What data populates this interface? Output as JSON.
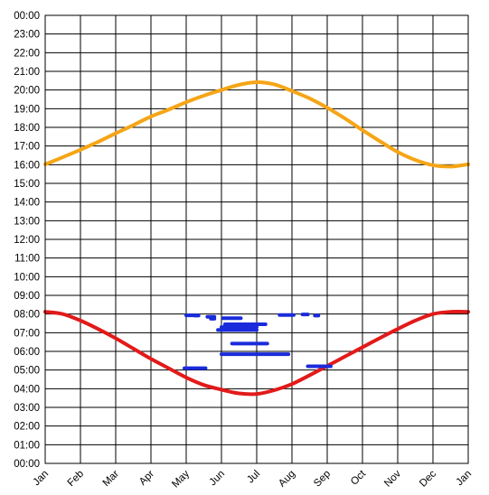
{
  "chart_data": {
    "type": "line",
    "title": "",
    "xlabel": "",
    "ylabel": "",
    "x_tick_labels": [
      "Jan",
      "Feb",
      "Mar",
      "Apr",
      "May",
      "Jun",
      "Jul",
      "Aug",
      "Sep",
      "Oct",
      "Nov",
      "Dec",
      "Jan"
    ],
    "y_tick_labels": [
      "00:00",
      "01:00",
      "02:00",
      "03:00",
      "04:00",
      "05:00",
      "06:00",
      "07:00",
      "08:00",
      "09:00",
      "10:00",
      "11:00",
      "12:00",
      "13:00",
      "14:00",
      "15:00",
      "16:00",
      "17:00",
      "18:00",
      "19:00",
      "20:00",
      "21:00",
      "22:00",
      "23:00",
      "00:00"
    ],
    "ylim": [
      0,
      24
    ],
    "xlim": [
      0,
      12
    ],
    "grid": true,
    "series": [
      {
        "color": "#f5a516",
        "x": [
          0,
          0.5,
          1,
          1.5,
          2,
          2.5,
          3,
          3.5,
          4,
          4.5,
          5,
          5.5,
          6,
          6.5,
          7,
          7.5,
          8,
          8.5,
          9,
          9.5,
          10,
          10.5,
          11,
          11.5,
          12
        ],
        "y": [
          16.02,
          16.4,
          16.8,
          17.22,
          17.68,
          18.12,
          18.58,
          18.95,
          19.35,
          19.7,
          20.0,
          20.28,
          20.42,
          20.3,
          19.95,
          19.55,
          19.05,
          18.48,
          17.85,
          17.25,
          16.68,
          16.25,
          15.97,
          15.9,
          16.02
        ]
      },
      {
        "color": "#e21a1a",
        "x": [
          0,
          0.5,
          1,
          1.5,
          2,
          2.5,
          3,
          3.5,
          4,
          4.5,
          5,
          5.5,
          6,
          6.5,
          7,
          7.5,
          8,
          8.5,
          9,
          9.5,
          10,
          10.5,
          11,
          11.5,
          12
        ],
        "y": [
          8.12,
          8.0,
          7.65,
          7.2,
          6.7,
          6.15,
          5.6,
          5.1,
          4.6,
          4.2,
          3.95,
          3.75,
          3.72,
          3.92,
          4.25,
          4.72,
          5.22,
          5.72,
          6.22,
          6.72,
          7.2,
          7.65,
          8.0,
          8.12,
          8.12
        ]
      }
    ],
    "blue_segments": [
      {
        "x1": 4.0,
        "x2": 4.25,
        "y": 7.93
      },
      {
        "x1": 4.25,
        "x2": 4.35,
        "y": 7.92
      },
      {
        "x1": 4.6,
        "x2": 4.8,
        "y": 7.85
      },
      {
        "x1": 4.7,
        "x2": 4.8,
        "y": 7.75
      },
      {
        "x1": 5.05,
        "x2": 5.55,
        "y": 7.78
      },
      {
        "x1": 5.0,
        "x2": 6.0,
        "y": 7.3
      },
      {
        "x1": 4.9,
        "x2": 6.0,
        "y": 7.15
      },
      {
        "x1": 5.1,
        "x2": 6.25,
        "y": 7.45
      },
      {
        "x1": 5.3,
        "x2": 6.3,
        "y": 6.42
      },
      {
        "x1": 5.0,
        "x2": 6.9,
        "y": 5.85
      },
      {
        "x1": 6.65,
        "x2": 7.05,
        "y": 7.95
      },
      {
        "x1": 7.3,
        "x2": 7.45,
        "y": 7.98
      },
      {
        "x1": 7.65,
        "x2": 7.75,
        "y": 7.92
      },
      {
        "x1": 3.95,
        "x2": 4.55,
        "y": 5.1
      },
      {
        "x1": 7.45,
        "x2": 8.1,
        "y": 5.2
      }
    ],
    "blue_color": "#1a2bdc",
    "legend": "none"
  }
}
